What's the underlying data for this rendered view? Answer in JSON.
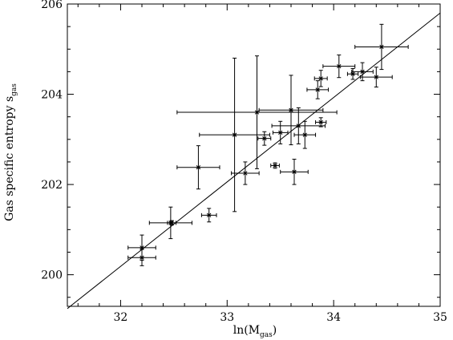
{
  "chart_data": {
    "type": "scatter",
    "xlabel": {
      "main": "ln(M",
      "sub": "gas",
      "close": ")"
    },
    "ylabel": {
      "main": "Gas specific entropy s",
      "sub": "gas"
    },
    "xlim": [
      31.5,
      35
    ],
    "ylim": [
      199.3,
      206
    ],
    "xticks_major": [
      32,
      33,
      34,
      35
    ],
    "xtick_labels": [
      "32",
      "33",
      "34",
      "35"
    ],
    "yticks_major": [
      200,
      202,
      204,
      206
    ],
    "ytick_labels": [
      "200",
      "202",
      "204",
      "206"
    ],
    "grid": false,
    "legend": "none",
    "fit_line": {
      "x": [
        31.5,
        35
      ],
      "y": [
        199.25,
        205.8
      ]
    },
    "points": [
      {
        "x": 32.2,
        "y": 200.6,
        "xerr": 0.13,
        "yerr": 0.28
      },
      {
        "x": 32.2,
        "y": 200.38,
        "xerr": 0.13,
        "yerr": 0.18
      },
      {
        "x": 32.47,
        "y": 201.15,
        "xerr": 0.2,
        "yerr": 0.35
      },
      {
        "x": 32.48,
        "y": 201.15,
        "xerr": 0.04,
        "yerr": 0.05
      },
      {
        "x": 32.73,
        "y": 202.38,
        "xerr": 0.2,
        "yerr": 0.48
      },
      {
        "x": 32.83,
        "y": 201.32,
        "xerr": 0.07,
        "yerr": 0.15
      },
      {
        "x": 33.07,
        "y": 203.1,
        "xerr": 0.33,
        "yerr": 1.7
      },
      {
        "x": 33.17,
        "y": 202.25,
        "xerr": 0.13,
        "yerr": 0.25
      },
      {
        "x": 33.28,
        "y": 203.6,
        "xerr": 0.75,
        "yerr": 1.25
      },
      {
        "x": 33.35,
        "y": 203.02,
        "xerr": 0.06,
        "yerr": 0.15
      },
      {
        "x": 33.45,
        "y": 202.42,
        "xerr": 0.04,
        "yerr": 0.06
      },
      {
        "x": 33.5,
        "y": 203.15,
        "xerr": 0.07,
        "yerr": 0.25
      },
      {
        "x": 33.6,
        "y": 203.65,
        "xerr": 0.3,
        "yerr": 0.77
      },
      {
        "x": 33.63,
        "y": 202.28,
        "xerr": 0.13,
        "yerr": 0.28
      },
      {
        "x": 33.67,
        "y": 203.3,
        "xerr": 0.25,
        "yerr": 0.4
      },
      {
        "x": 33.73,
        "y": 203.1,
        "xerr": 0.1,
        "yerr": 0.3
      },
      {
        "x": 33.85,
        "y": 204.1,
        "xerr": 0.1,
        "yerr": 0.2
      },
      {
        "x": 33.88,
        "y": 204.35,
        "xerr": 0.06,
        "yerr": 0.18
      },
      {
        "x": 33.88,
        "y": 203.38,
        "xerr": 0.05,
        "yerr": 0.1
      },
      {
        "x": 34.05,
        "y": 204.62,
        "xerr": 0.15,
        "yerr": 0.25
      },
      {
        "x": 34.18,
        "y": 204.45,
        "xerr": 0.05,
        "yerr": 0.12
      },
      {
        "x": 34.27,
        "y": 204.5,
        "xerr": 0.1,
        "yerr": 0.2
      },
      {
        "x": 34.4,
        "y": 204.38,
        "xerr": 0.15,
        "yerr": 0.22
      },
      {
        "x": 34.45,
        "y": 205.05,
        "xerr": 0.25,
        "yerr": 0.5
      }
    ]
  }
}
